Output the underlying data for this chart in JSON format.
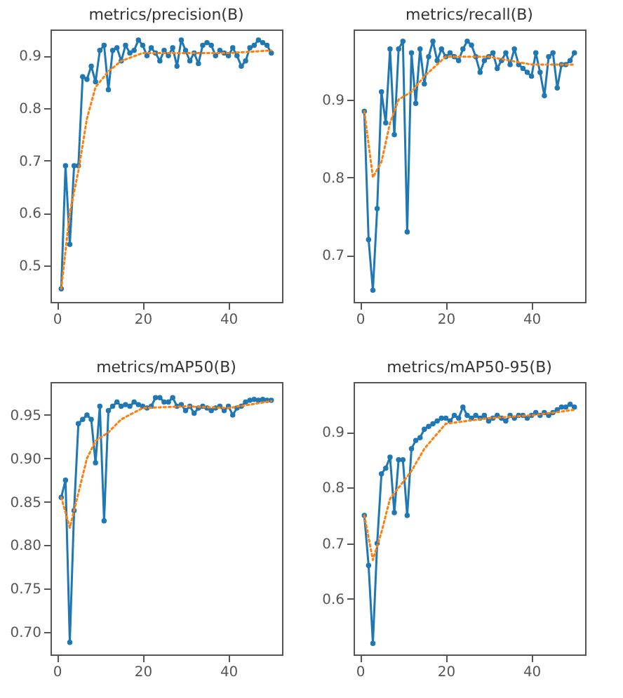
{
  "chart_data": [
    {
      "type": "line",
      "title": "metrics/precision(B)",
      "x": [
        1,
        2,
        3,
        4,
        5,
        6,
        7,
        8,
        9,
        10,
        11,
        12,
        13,
        14,
        15,
        16,
        17,
        18,
        19,
        20,
        21,
        22,
        23,
        24,
        25,
        26,
        27,
        28,
        29,
        30,
        31,
        32,
        33,
        34,
        35,
        36,
        37,
        38,
        39,
        40,
        41,
        42,
        43,
        44,
        45,
        46,
        47,
        48,
        49,
        50
      ],
      "xlim": [
        -1.5,
        52.5
      ],
      "xticks": [
        0,
        20,
        40
      ],
      "ylim": [
        0.43,
        0.95
      ],
      "yticks": [
        0.5,
        0.6,
        0.7,
        0.8,
        0.9
      ],
      "grid": false,
      "series": [
        {
          "color": "#1f77b4",
          "marker": "circle",
          "line_style": "solid",
          "values": [
            0.455,
            0.69,
            0.54,
            0.69,
            0.69,
            0.86,
            0.855,
            0.88,
            0.85,
            0.91,
            0.92,
            0.835,
            0.91,
            0.915,
            0.89,
            0.92,
            0.905,
            0.91,
            0.93,
            0.92,
            0.9,
            0.915,
            0.905,
            0.89,
            0.91,
            0.9,
            0.915,
            0.88,
            0.93,
            0.91,
            0.89,
            0.905,
            0.885,
            0.92,
            0.925,
            0.92,
            0.9,
            0.91,
            0.905,
            0.9,
            0.915,
            0.9,
            0.88,
            0.89,
            0.915,
            0.92,
            0.93,
            0.925,
            0.92,
            0.905
          ]
        },
        {
          "color": "#ff7f0e",
          "marker": "none",
          "line_style": "dotted",
          "x": [
            1,
            3,
            5,
            7,
            9,
            12,
            15,
            20,
            30,
            40,
            50
          ],
          "values": [
            0.455,
            0.6,
            0.68,
            0.78,
            0.84,
            0.87,
            0.89,
            0.905,
            0.905,
            0.905,
            0.91
          ]
        }
      ]
    },
    {
      "type": "line",
      "title": "metrics/recall(B)",
      "x": [
        1,
        2,
        3,
        4,
        5,
        6,
        7,
        8,
        9,
        10,
        11,
        12,
        13,
        14,
        15,
        16,
        17,
        18,
        19,
        20,
        21,
        22,
        23,
        24,
        25,
        26,
        27,
        28,
        29,
        30,
        31,
        32,
        33,
        34,
        35,
        36,
        37,
        38,
        39,
        40,
        41,
        42,
        43,
        44,
        45,
        46,
        47,
        48,
        49,
        50
      ],
      "xlim": [
        -1.5,
        52.5
      ],
      "xticks": [
        0,
        20,
        40
      ],
      "ylim": [
        0.64,
        0.99
      ],
      "yticks": [
        0.7,
        0.8,
        0.9
      ],
      "grid": false,
      "series": [
        {
          "color": "#1f77b4",
          "marker": "circle",
          "line_style": "solid",
          "values": [
            0.885,
            0.72,
            0.655,
            0.76,
            0.91,
            0.87,
            0.965,
            0.855,
            0.965,
            0.975,
            0.73,
            0.96,
            0.895,
            0.965,
            0.92,
            0.955,
            0.975,
            0.95,
            0.965,
            0.955,
            0.96,
            0.955,
            0.95,
            0.965,
            0.975,
            0.97,
            0.955,
            0.935,
            0.95,
            0.955,
            0.96,
            0.94,
            0.95,
            0.96,
            0.945,
            0.965,
            0.945,
            0.94,
            0.935,
            0.93,
            0.96,
            0.935,
            0.905,
            0.955,
            0.96,
            0.915,
            0.945,
            0.945,
            0.95,
            0.96
          ]
        },
        {
          "color": "#ff7f0e",
          "marker": "none",
          "line_style": "dotted",
          "x": [
            1,
            3,
            5,
            7,
            9,
            12,
            15,
            20,
            30,
            40,
            50
          ],
          "values": [
            0.885,
            0.8,
            0.82,
            0.87,
            0.9,
            0.91,
            0.93,
            0.955,
            0.955,
            0.945,
            0.945
          ]
        }
      ]
    },
    {
      "type": "line",
      "title": "metrics/mAP50(B)",
      "x": [
        1,
        2,
        3,
        4,
        5,
        6,
        7,
        8,
        9,
        10,
        11,
        12,
        13,
        14,
        15,
        16,
        17,
        18,
        19,
        20,
        21,
        22,
        23,
        24,
        25,
        26,
        27,
        28,
        29,
        30,
        31,
        32,
        33,
        34,
        35,
        36,
        37,
        38,
        39,
        40,
        41,
        42,
        43,
        44,
        45,
        46,
        47,
        48,
        49,
        50
      ],
      "xlim": [
        -1.5,
        52.5
      ],
      "xticks": [
        0,
        20,
        40
      ],
      "ylim": [
        0.674,
        0.988
      ],
      "yticks": [
        {
          "value": 0.7,
          "label": "0.70"
        },
        0.75,
        {
          "value": 0.8,
          "label": "0.80"
        },
        0.85,
        {
          "value": 0.9,
          "label": "0.90"
        },
        0.95
      ],
      "grid": false,
      "series": [
        {
          "color": "#1f77b4",
          "marker": "circle",
          "line_style": "solid",
          "values": [
            0.855,
            0.875,
            0.688,
            0.84,
            0.94,
            0.945,
            0.95,
            0.945,
            0.895,
            0.96,
            0.828,
            0.955,
            0.96,
            0.965,
            0.96,
            0.962,
            0.96,
            0.965,
            0.962,
            0.96,
            0.958,
            0.96,
            0.97,
            0.97,
            0.965,
            0.965,
            0.97,
            0.96,
            0.962,
            0.955,
            0.96,
            0.952,
            0.958,
            0.96,
            0.958,
            0.955,
            0.958,
            0.96,
            0.955,
            0.96,
            0.95,
            0.958,
            0.96,
            0.965,
            0.967,
            0.968,
            0.967,
            0.968,
            0.967,
            0.967
          ]
        },
        {
          "color": "#ff7f0e",
          "marker": "none",
          "line_style": "dotted",
          "x": [
            1,
            3,
            5,
            7,
            9,
            12,
            15,
            20,
            30,
            40,
            50
          ],
          "values": [
            0.855,
            0.82,
            0.86,
            0.9,
            0.92,
            0.93,
            0.945,
            0.958,
            0.96,
            0.958,
            0.966
          ]
        }
      ]
    },
    {
      "type": "line",
      "title": "metrics/mAP50-95(B)",
      "x": [
        1,
        2,
        3,
        4,
        5,
        6,
        7,
        8,
        9,
        10,
        11,
        12,
        13,
        14,
        15,
        16,
        17,
        18,
        19,
        20,
        21,
        22,
        23,
        24,
        25,
        26,
        27,
        28,
        29,
        30,
        31,
        32,
        33,
        34,
        35,
        36,
        37,
        38,
        39,
        40,
        41,
        42,
        43,
        44,
        45,
        46,
        47,
        48,
        49,
        50
      ],
      "xlim": [
        -1.5,
        52.5
      ],
      "xticks": [
        0,
        20,
        40
      ],
      "ylim": [
        0.5,
        0.99
      ],
      "yticks": [
        0.6,
        0.7,
        0.8,
        0.9
      ],
      "grid": false,
      "series": [
        {
          "color": "#1f77b4",
          "marker": "circle",
          "line_style": "solid",
          "values": [
            0.75,
            0.66,
            0.52,
            0.7,
            0.825,
            0.835,
            0.855,
            0.755,
            0.85,
            0.85,
            0.75,
            0.87,
            0.885,
            0.89,
            0.905,
            0.91,
            0.915,
            0.92,
            0.925,
            0.925,
            0.92,
            0.93,
            0.925,
            0.945,
            0.93,
            0.925,
            0.93,
            0.925,
            0.93,
            0.92,
            0.925,
            0.93,
            0.925,
            0.92,
            0.93,
            0.925,
            0.93,
            0.93,
            0.925,
            0.93,
            0.935,
            0.93,
            0.935,
            0.93,
            0.935,
            0.94,
            0.945,
            0.945,
            0.95,
            0.945
          ]
        },
        {
          "color": "#ff7f0e",
          "marker": "none",
          "line_style": "dotted",
          "x": [
            1,
            3,
            5,
            7,
            9,
            12,
            15,
            20,
            30,
            40,
            50
          ],
          "values": [
            0.75,
            0.67,
            0.72,
            0.78,
            0.8,
            0.83,
            0.87,
            0.915,
            0.925,
            0.93,
            0.94
          ]
        }
      ]
    }
  ]
}
